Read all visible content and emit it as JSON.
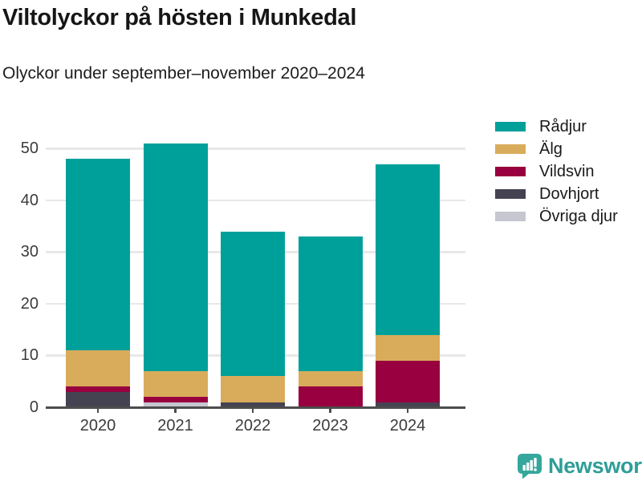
{
  "header": {
    "title": "Viltolyckor på hösten i Munkedal",
    "subtitle": "Olyckor under september–november 2020–2024"
  },
  "chart_data": {
    "type": "bar",
    "stacked": true,
    "title": "Viltolyckor på hösten i Munkedal",
    "subtitle": "Olyckor under september–november 2020–2024",
    "categories": [
      "2020",
      "2021",
      "2022",
      "2023",
      "2024"
    ],
    "series": [
      {
        "name": "Rådjur",
        "color": "#00a09a",
        "values": [
          37,
          44,
          28,
          26,
          33
        ]
      },
      {
        "name": "Älg",
        "color": "#d9ac5c",
        "values": [
          7,
          5,
          5,
          3,
          5
        ]
      },
      {
        "name": "Vildsvin",
        "color": "#98003f",
        "values": [
          1,
          1,
          0,
          4,
          8
        ]
      },
      {
        "name": "Dovhjort",
        "color": "#454351",
        "values": [
          3,
          0,
          1,
          0,
          1
        ]
      },
      {
        "name": "Övriga djur",
        "color": "#c7c7d1",
        "values": [
          0,
          1,
          0,
          0,
          0
        ]
      }
    ],
    "stack_order_bottom_to_top": [
      "Övriga djur",
      "Dovhjort",
      "Vildsvin",
      "Älg",
      "Rådjur"
    ],
    "totals": [
      48,
      51,
      34,
      33,
      47
    ],
    "xlabel": "",
    "ylabel": "",
    "ylim": [
      0,
      55
    ],
    "yticks": [
      0,
      10,
      20,
      30,
      40,
      50
    ],
    "grid": true,
    "legend_position": "top-right"
  },
  "footer": {
    "brand": "Newsworthy",
    "logo_icon": "newsworthy-speech-bubble-bar-chart-icon",
    "brand_color": "#2e9e97"
  }
}
